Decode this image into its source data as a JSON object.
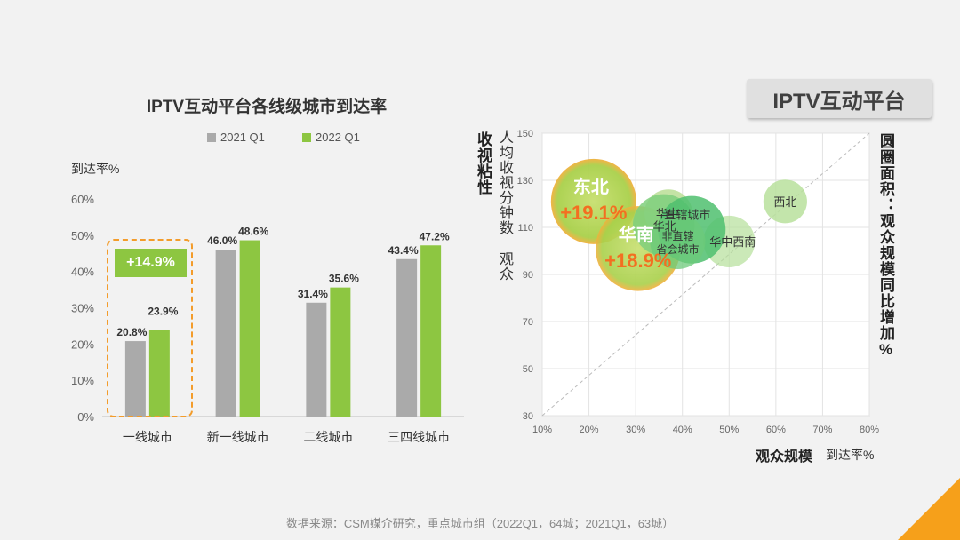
{
  "badge": "IPTV互动平台",
  "source_note": "数据来源：CSM媒介研究，重点城市组（2022Q1，64城；2021Q1，63城）",
  "colors": {
    "gray": "#aaaaaa",
    "green": "#8dc641",
    "orange": "#f39c2b",
    "accent": "#f6a01a"
  },
  "chart_data": [
    {
      "type": "bar",
      "title": "IPTV互动平台各线级城市到达率",
      "ylabel": "到达率%",
      "ylim": [
        0,
        60
      ],
      "yticks": [
        "0%",
        "10%",
        "20%",
        "30%",
        "40%",
        "50%",
        "60%"
      ],
      "categories": [
        "一线城市",
        "新一线城市",
        "二线城市",
        "三四线城市"
      ],
      "series": [
        {
          "name": "2021 Q1",
          "values": [
            20.8,
            46.0,
            31.4,
            43.4
          ],
          "labels": [
            "20.8%",
            "46.0%",
            "31.4%",
            "43.4%"
          ]
        },
        {
          "name": "2022 Q1",
          "values": [
            23.9,
            48.6,
            35.6,
            47.2
          ],
          "labels": [
            "23.9%",
            "48.6%",
            "35.6%",
            "47.2%"
          ]
        }
      ],
      "annotation": "+14.9%"
    },
    {
      "type": "scatter",
      "xlabel_bold": "观众规模",
      "xlabel_unit": "到达率%",
      "ylabel_bold": "收视粘性",
      "ylabel": "人均收视分钟数 观众",
      "size_label": "圆圈面积：观众规模同比增加%",
      "xlim": [
        10,
        80
      ],
      "ylim": [
        30,
        150
      ],
      "xticks": [
        "10%",
        "20%",
        "30%",
        "40%",
        "50%",
        "60%",
        "70%",
        "80%"
      ],
      "yticks": [
        "30",
        "50",
        "70",
        "90",
        "110",
        "130",
        "150"
      ],
      "points": [
        {
          "name": "东北",
          "x": 21,
          "y": 121,
          "growth": "+19.1%",
          "size": 19.1
        },
        {
          "name": "华南",
          "x": 30.5,
          "y": 101,
          "growth": "+18.9%",
          "size": 18.9
        },
        {
          "name": "华中",
          "x": 37,
          "y": 116,
          "size": 6
        },
        {
          "name": "华北",
          "x": 36,
          "y": 111,
          "size": 10
        },
        {
          "name": "直辖城市",
          "x": 42,
          "y": 109,
          "size": 12
        },
        {
          "name": "非直辖省会城市",
          "x": 39,
          "y": 104,
          "size": 8
        },
        {
          "name": "华中西南",
          "x": 50,
          "y": 104,
          "size": 7
        },
        {
          "name": "西北",
          "x": 62,
          "y": 121,
          "size": 5
        }
      ]
    }
  ]
}
